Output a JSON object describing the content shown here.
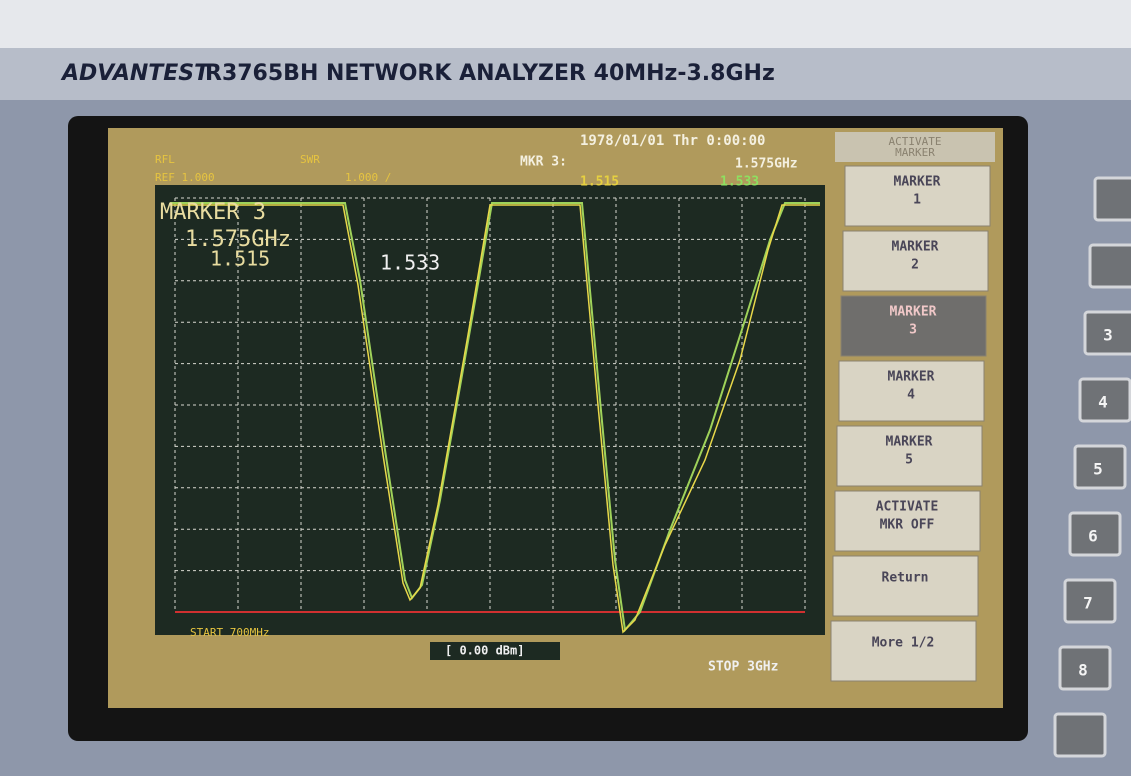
{
  "header": {
    "brand": "ADVANTEST",
    "model": "R3765BH NETWORK ANALYZER 40MHz-3.8GHz"
  },
  "screen": {
    "datetime": "1978/01/01 Thr 0:00:00",
    "status": {
      "channel": "RFL",
      "ref": "REF 1.000",
      "format": "SWR",
      "scale": "1.000 /",
      "marker_label": "MKR 3:",
      "marker_freq": "1.575GHz",
      "marker_value_1": "1.515",
      "marker_value_2": "1.533"
    },
    "overlay": {
      "title": "MARKER 3",
      "freq": "1.575GHz",
      "value_1": "1.515",
      "value_2": "1.533"
    },
    "footer": {
      "start": "START 700MHz",
      "power": "[ 0.00 dBm]",
      "stop": "STOP 3GHz"
    },
    "softkeys": {
      "title": [
        "ACTIVATE",
        "MARKER"
      ],
      "keys": [
        [
          "MARKER",
          "1"
        ],
        [
          "MARKER",
          "2"
        ],
        [
          "MARKER",
          "3"
        ],
        [
          "MARKER",
          "4"
        ],
        [
          "MARKER",
          "5"
        ],
        [
          "ACTIVATE",
          "MKR OFF"
        ],
        [
          "Return"
        ],
        [
          "More 1/2"
        ]
      ]
    }
  },
  "side_buttons": [
    "3",
    "4",
    "5",
    "6",
    "7",
    "8"
  ]
}
